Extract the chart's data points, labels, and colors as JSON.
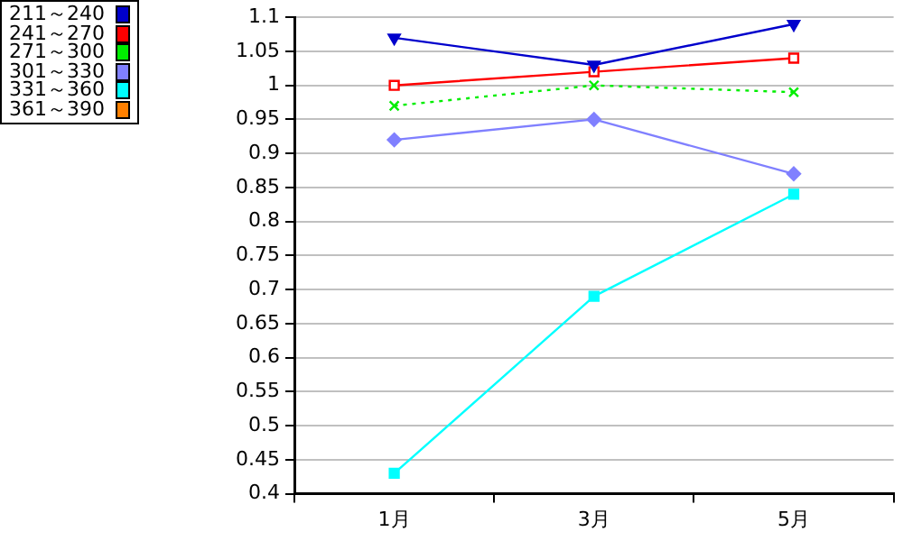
{
  "chart_data": {
    "type": "line",
    "categories": [
      "1月",
      "3月",
      "5月"
    ],
    "series": [
      {
        "name": "211～240",
        "color": "#0000cc",
        "marker": "triangle_down",
        "values": [
          1.07,
          1.03,
          1.09
        ]
      },
      {
        "name": "241～270",
        "color": "#ff0000",
        "marker": "square_open",
        "values": [
          1.0,
          1.02,
          1.04
        ]
      },
      {
        "name": "271～300",
        "color": "#00ee00",
        "marker": "cross",
        "line_style": "dotted",
        "values": [
          0.97,
          1.0,
          0.99
        ]
      },
      {
        "name": "301～330",
        "color": "#8080ff",
        "marker": "diamond",
        "values": [
          0.92,
          0.95,
          0.87
        ]
      },
      {
        "name": "331～360",
        "color": "#00ffff",
        "marker": "square",
        "values": [
          0.43,
          0.69,
          0.84
        ]
      },
      {
        "name": "361～390",
        "color": "#ff8000",
        "marker": "square",
        "values": [
          null,
          null,
          null
        ]
      }
    ],
    "ylim": [
      0.4,
      1.1
    ],
    "yticks": [
      0.4,
      0.45,
      0.5,
      0.55,
      0.6,
      0.65,
      0.7,
      0.75,
      0.8,
      0.85,
      0.9,
      0.95,
      1,
      1.05,
      1.1
    ],
    "grid": "y",
    "legend": "top left"
  }
}
